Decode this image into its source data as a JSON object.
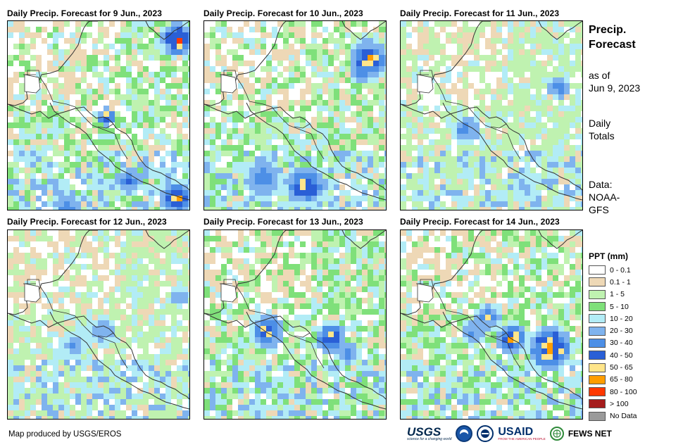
{
  "panels": [
    {
      "title": "Daily Precip. Forecast for 9 Jun., 2023"
    },
    {
      "title": "Daily Precip. Forecast for 10 Jun., 2023"
    },
    {
      "title": "Daily Precip. Forecast for 11 Jun., 2023"
    },
    {
      "title": "Daily Precip. Forecast for 12 Jun., 2023"
    },
    {
      "title": "Daily Precip. Forecast for 13 Jun., 2023"
    },
    {
      "title": "Daily Precip. Forecast for 14 Jun., 2023"
    }
  ],
  "sidebar": {
    "title": "Precip. Forecast",
    "asof_label": "as of",
    "asof_date": "Jun 9, 2023",
    "daily_totals": "Daily Totals",
    "data_label": "Data:",
    "data_source": "NOAA-GFS"
  },
  "legend": {
    "title": "PPT (mm)",
    "items": [
      {
        "label": "0 - 0.1",
        "color": "#ffffff"
      },
      {
        "label": "0.1 - 1",
        "color": "#eed8b6"
      },
      {
        "label": "1 - 5",
        "color": "#bff2b0"
      },
      {
        "label": "5 - 10",
        "color": "#7fe07a"
      },
      {
        "label": "10 - 20",
        "color": "#b2ecf6"
      },
      {
        "label": "20 - 30",
        "color": "#7fb3ee"
      },
      {
        "label": "30 - 40",
        "color": "#4d8fe6"
      },
      {
        "label": "40 - 50",
        "color": "#2a5fd6"
      },
      {
        "label": "50 - 65",
        "color": "#ffe58a"
      },
      {
        "label": "65 - 80",
        "color": "#ff9d00"
      },
      {
        "label": "80 - 100",
        "color": "#ff3800"
      },
      {
        "label": "> 100",
        "color": "#a51c1c"
      },
      {
        "label": "No Data",
        "color": "#9a9a9a"
      }
    ]
  },
  "credit": "Map produced by USGS/EROS",
  "logos": {
    "usgs": "USGS",
    "usgs_tagline": "science for a changing world",
    "usaid": "USAID",
    "usaid_tagline": "FROM THE AMERICAN PEOPLE",
    "fews": "FEWS NET"
  }
}
